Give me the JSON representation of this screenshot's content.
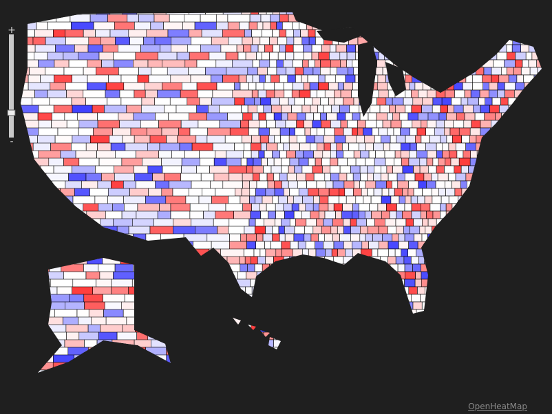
{
  "zoom": {
    "in": "+",
    "out": "-"
  },
  "attribution": "OpenHeatMap"
}
